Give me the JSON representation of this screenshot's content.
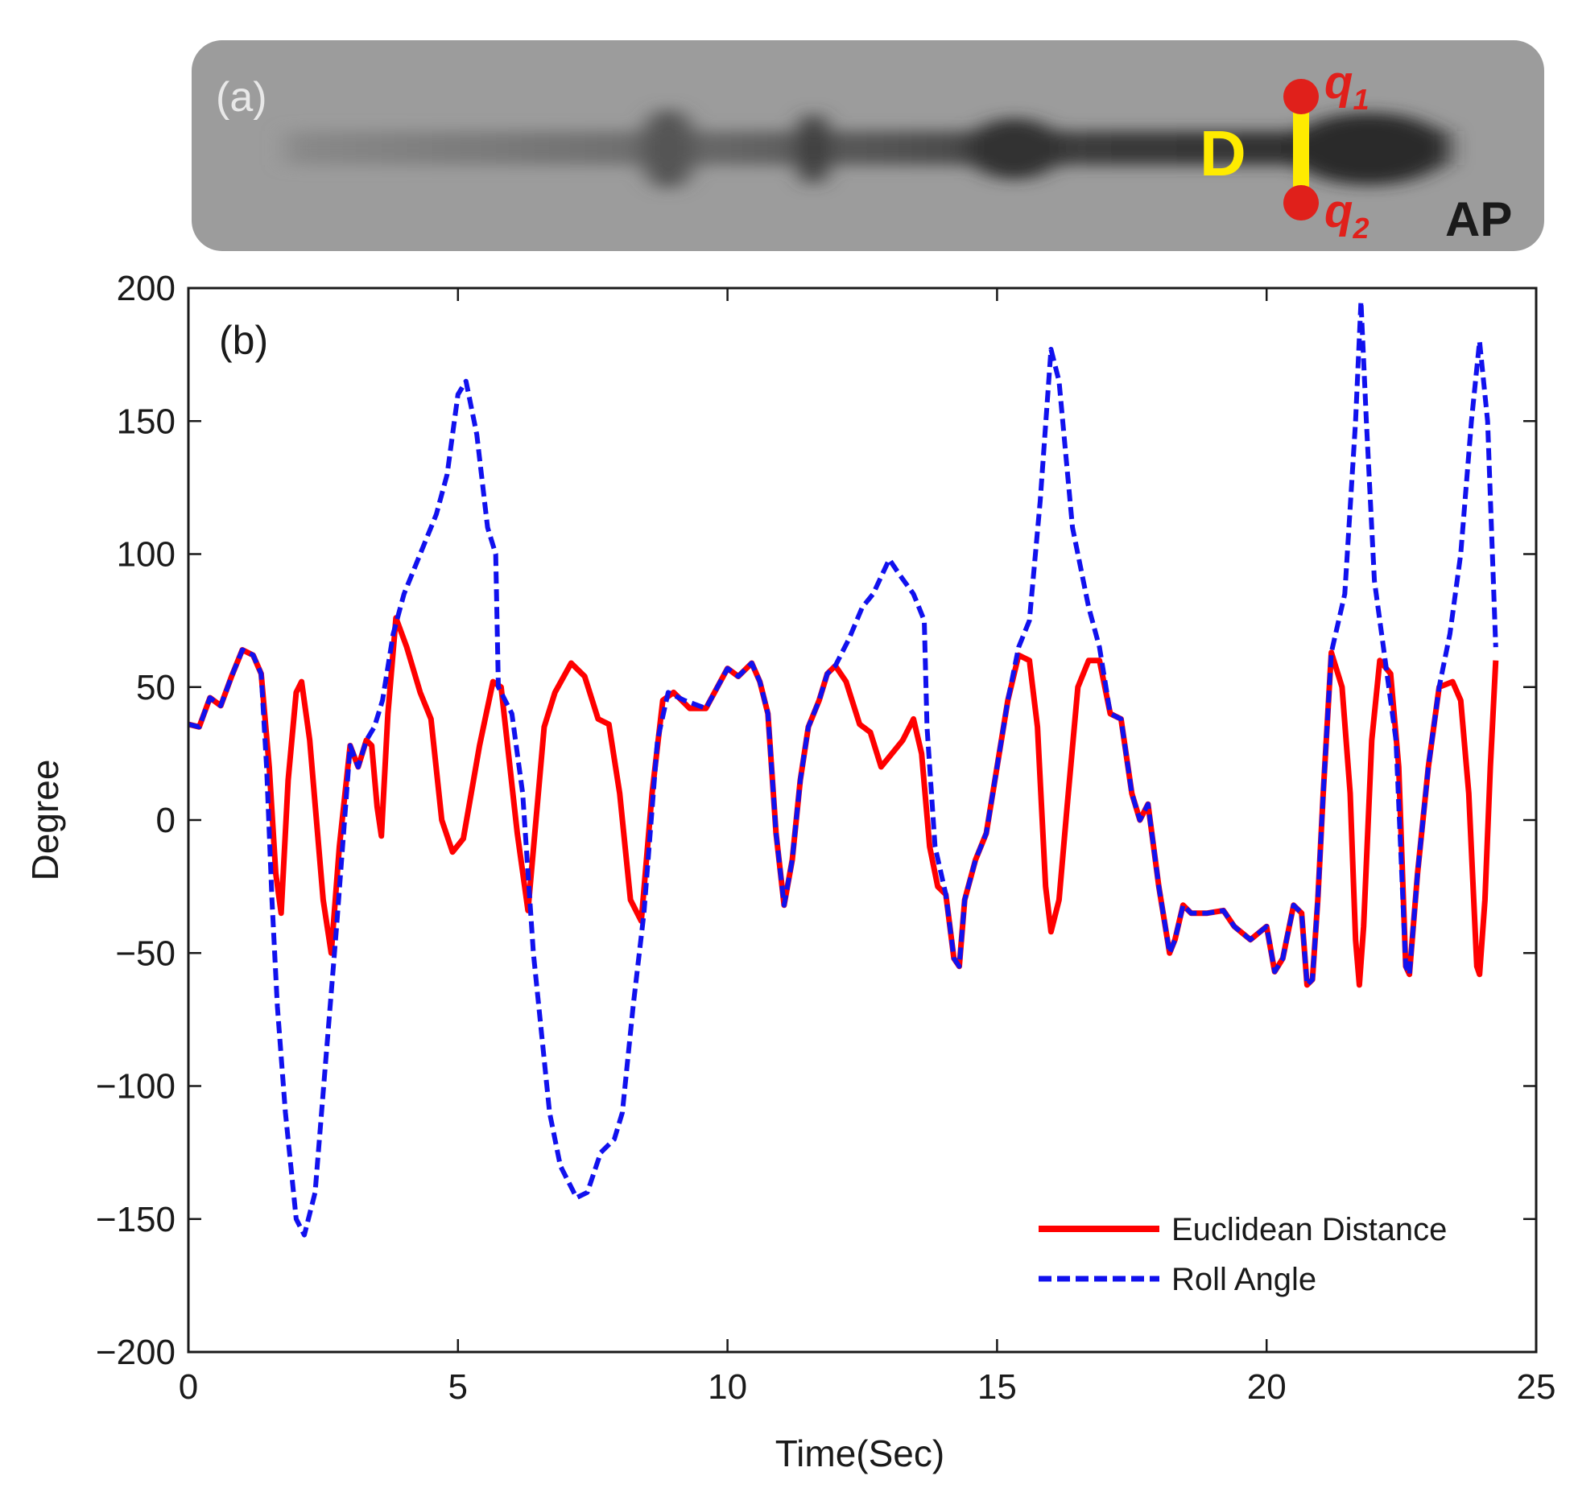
{
  "strip": {
    "panel_label": "(a)",
    "segment_label": "D",
    "point_top_label": "q",
    "point_top_sub": "1",
    "point_bottom_label": "q",
    "point_bottom_sub": "2",
    "view_label": "AP",
    "colors": {
      "background": "#9c9c9c",
      "segment": "#ffeb00",
      "points": "#e0201b",
      "view": "#1a1a1a"
    }
  },
  "chart_data": {
    "type": "line",
    "panel_label": "(b)",
    "title": "",
    "xlabel": "Time(Sec)",
    "ylabel": "Degree",
    "xlim": [
      0,
      25
    ],
    "ylim": [
      -200,
      200
    ],
    "xticks": [
      0,
      5,
      10,
      15,
      20,
      25
    ],
    "xtick_labels": [
      "0",
      "5",
      "10",
      "15",
      "20",
      "25"
    ],
    "yticks": [
      -200,
      -150,
      -100,
      -50,
      0,
      50,
      100,
      150,
      200
    ],
    "ytick_labels": [
      "−200",
      "−150",
      "−100",
      "−50",
      "0",
      "50",
      "100",
      "150",
      "200"
    ],
    "grid": false,
    "legend_position": "bottom-right",
    "series": [
      {
        "name": "Euclidean Distance",
        "color": "#ff0000",
        "style": "solid",
        "points": [
          [
            0,
            36
          ],
          [
            0.2,
            35
          ],
          [
            0.4,
            46
          ],
          [
            0.6,
            43
          ],
          [
            0.8,
            54
          ],
          [
            1.0,
            64
          ],
          [
            1.2,
            62
          ],
          [
            1.35,
            55
          ],
          [
            1.5,
            20
          ],
          [
            1.62,
            -20
          ],
          [
            1.72,
            -35
          ],
          [
            1.85,
            15
          ],
          [
            2.0,
            48
          ],
          [
            2.1,
            52
          ],
          [
            2.25,
            30
          ],
          [
            2.5,
            -30
          ],
          [
            2.65,
            -50
          ],
          [
            2.8,
            -10
          ],
          [
            3.0,
            28
          ],
          [
            3.15,
            20
          ],
          [
            3.3,
            30
          ],
          [
            3.4,
            28
          ],
          [
            3.5,
            5
          ],
          [
            3.58,
            -6
          ],
          [
            3.7,
            40
          ],
          [
            3.85,
            76
          ],
          [
            4.05,
            65
          ],
          [
            4.3,
            48
          ],
          [
            4.5,
            38
          ],
          [
            4.7,
            0
          ],
          [
            4.9,
            -12
          ],
          [
            5.1,
            -7
          ],
          [
            5.4,
            28
          ],
          [
            5.65,
            52
          ],
          [
            5.8,
            50
          ],
          [
            6.1,
            -5
          ],
          [
            6.3,
            -34
          ],
          [
            6.6,
            35
          ],
          [
            6.8,
            48
          ],
          [
            7.1,
            59
          ],
          [
            7.35,
            54
          ],
          [
            7.6,
            38
          ],
          [
            7.8,
            36
          ],
          [
            8.0,
            10
          ],
          [
            8.2,
            -30
          ],
          [
            8.4,
            -38
          ],
          [
            8.6,
            10
          ],
          [
            8.8,
            45
          ],
          [
            9.0,
            48
          ],
          [
            9.3,
            42
          ],
          [
            9.6,
            42
          ],
          [
            10.0,
            57
          ],
          [
            10.2,
            54
          ],
          [
            10.45,
            59
          ],
          [
            10.6,
            52
          ],
          [
            10.75,
            40
          ],
          [
            10.9,
            -5
          ],
          [
            11.05,
            -32
          ],
          [
            11.2,
            -15
          ],
          [
            11.35,
            15
          ],
          [
            11.5,
            35
          ],
          [
            11.7,
            45
          ],
          [
            11.85,
            55
          ],
          [
            12.0,
            58
          ],
          [
            12.2,
            52
          ],
          [
            12.45,
            36
          ],
          [
            12.65,
            33
          ],
          [
            12.85,
            20
          ],
          [
            13.05,
            25
          ],
          [
            13.25,
            30
          ],
          [
            13.45,
            38
          ],
          [
            13.6,
            25
          ],
          [
            13.75,
            -10
          ],
          [
            13.9,
            -25
          ],
          [
            14.05,
            -28
          ],
          [
            14.2,
            -52
          ],
          [
            14.3,
            -55
          ],
          [
            14.4,
            -30
          ],
          [
            14.6,
            -15
          ],
          [
            14.8,
            -5
          ],
          [
            15.0,
            20
          ],
          [
            15.2,
            45
          ],
          [
            15.4,
            62
          ],
          [
            15.6,
            60
          ],
          [
            15.75,
            35
          ],
          [
            15.9,
            -25
          ],
          [
            16.0,
            -42
          ],
          [
            16.15,
            -30
          ],
          [
            16.3,
            5
          ],
          [
            16.5,
            50
          ],
          [
            16.7,
            60
          ],
          [
            16.9,
            60
          ],
          [
            17.1,
            40
          ],
          [
            17.3,
            38
          ],
          [
            17.5,
            10
          ],
          [
            17.65,
            0
          ],
          [
            17.8,
            6
          ],
          [
            18.0,
            -25
          ],
          [
            18.2,
            -50
          ],
          [
            18.3,
            -45
          ],
          [
            18.45,
            -32
          ],
          [
            18.6,
            -35
          ],
          [
            18.9,
            -35
          ],
          [
            19.2,
            -34
          ],
          [
            19.4,
            -40
          ],
          [
            19.7,
            -45
          ],
          [
            20.0,
            -40
          ],
          [
            20.15,
            -57
          ],
          [
            20.3,
            -52
          ],
          [
            20.5,
            -32
          ],
          [
            20.65,
            -35
          ],
          [
            20.75,
            -62
          ],
          [
            20.85,
            -60
          ],
          [
            20.95,
            -30
          ],
          [
            21.05,
            10
          ],
          [
            21.2,
            63
          ],
          [
            21.4,
            50
          ],
          [
            21.55,
            10
          ],
          [
            21.65,
            -45
          ],
          [
            21.72,
            -62
          ],
          [
            21.8,
            -40
          ],
          [
            21.95,
            30
          ],
          [
            22.1,
            60
          ],
          [
            22.3,
            55
          ],
          [
            22.45,
            20
          ],
          [
            22.58,
            -55
          ],
          [
            22.65,
            -58
          ],
          [
            22.8,
            -20
          ],
          [
            23.0,
            20
          ],
          [
            23.2,
            50
          ],
          [
            23.45,
            52
          ],
          [
            23.6,
            45
          ],
          [
            23.75,
            10
          ],
          [
            23.9,
            -55
          ],
          [
            23.95,
            -58
          ],
          [
            24.05,
            -30
          ],
          [
            24.15,
            20
          ],
          [
            24.25,
            60
          ]
        ]
      },
      {
        "name": "Roll Angle",
        "color": "#1111ee",
        "style": "dashed",
        "points": [
          [
            0,
            36
          ],
          [
            0.2,
            35
          ],
          [
            0.4,
            46
          ],
          [
            0.6,
            43
          ],
          [
            0.8,
            54
          ],
          [
            1.0,
            64
          ],
          [
            1.2,
            62
          ],
          [
            1.35,
            55
          ],
          [
            1.45,
            20
          ],
          [
            1.55,
            -30
          ],
          [
            1.65,
            -70
          ],
          [
            1.8,
            -110
          ],
          [
            2.0,
            -150
          ],
          [
            2.15,
            -156
          ],
          [
            2.35,
            -140
          ],
          [
            2.55,
            -90
          ],
          [
            2.75,
            -40
          ],
          [
            3.0,
            28
          ],
          [
            3.15,
            20
          ],
          [
            3.3,
            30
          ],
          [
            3.45,
            35
          ],
          [
            3.6,
            45
          ],
          [
            3.8,
            70
          ],
          [
            4.0,
            85
          ],
          [
            4.3,
            100
          ],
          [
            4.6,
            115
          ],
          [
            4.8,
            130
          ],
          [
            5.0,
            160
          ],
          [
            5.15,
            165
          ],
          [
            5.35,
            145
          ],
          [
            5.55,
            110
          ],
          [
            5.7,
            100
          ],
          [
            5.75,
            50
          ],
          [
            6.0,
            40
          ],
          [
            6.2,
            10
          ],
          [
            6.4,
            -50
          ],
          [
            6.7,
            -110
          ],
          [
            6.9,
            -130
          ],
          [
            7.2,
            -142
          ],
          [
            7.4,
            -140
          ],
          [
            7.65,
            -125
          ],
          [
            7.9,
            -120
          ],
          [
            8.05,
            -110
          ],
          [
            8.25,
            -70
          ],
          [
            8.45,
            -35
          ],
          [
            8.7,
            30
          ],
          [
            8.9,
            48
          ],
          [
            9.2,
            45
          ],
          [
            9.6,
            42
          ],
          [
            10.0,
            57
          ],
          [
            10.2,
            54
          ],
          [
            10.45,
            59
          ],
          [
            10.6,
            52
          ],
          [
            10.75,
            40
          ],
          [
            10.9,
            -5
          ],
          [
            11.05,
            -32
          ],
          [
            11.2,
            -15
          ],
          [
            11.35,
            15
          ],
          [
            11.5,
            35
          ],
          [
            11.7,
            45
          ],
          [
            11.85,
            55
          ],
          [
            12.0,
            58
          ],
          [
            12.25,
            68
          ],
          [
            12.5,
            80
          ],
          [
            12.7,
            85
          ],
          [
            13.0,
            98
          ],
          [
            13.2,
            92
          ],
          [
            13.45,
            85
          ],
          [
            13.65,
            75
          ],
          [
            13.7,
            35
          ],
          [
            13.85,
            -10
          ],
          [
            14.05,
            -28
          ],
          [
            14.2,
            -52
          ],
          [
            14.3,
            -55
          ],
          [
            14.4,
            -30
          ],
          [
            14.6,
            -15
          ],
          [
            14.8,
            -5
          ],
          [
            15.0,
            20
          ],
          [
            15.2,
            45
          ],
          [
            15.4,
            65
          ],
          [
            15.6,
            75
          ],
          [
            15.8,
            120
          ],
          [
            16.0,
            177
          ],
          [
            16.15,
            165
          ],
          [
            16.4,
            110
          ],
          [
            16.7,
            80
          ],
          [
            16.9,
            65
          ],
          [
            17.1,
            40
          ],
          [
            17.3,
            38
          ],
          [
            17.5,
            10
          ],
          [
            17.65,
            0
          ],
          [
            17.8,
            6
          ],
          [
            18.0,
            -25
          ],
          [
            18.2,
            -50
          ],
          [
            18.3,
            -45
          ],
          [
            18.45,
            -32
          ],
          [
            18.6,
            -35
          ],
          [
            18.9,
            -35
          ],
          [
            19.2,
            -34
          ],
          [
            19.4,
            -40
          ],
          [
            19.7,
            -45
          ],
          [
            20.0,
            -40
          ],
          [
            20.15,
            -57
          ],
          [
            20.3,
            -52
          ],
          [
            20.5,
            -32
          ],
          [
            20.65,
            -35
          ],
          [
            20.75,
            -62
          ],
          [
            20.85,
            -60
          ],
          [
            20.95,
            -30
          ],
          [
            21.05,
            10
          ],
          [
            21.2,
            63
          ],
          [
            21.45,
            85
          ],
          [
            21.65,
            150
          ],
          [
            21.75,
            195
          ],
          [
            21.85,
            150
          ],
          [
            22.0,
            90
          ],
          [
            22.2,
            60
          ],
          [
            22.4,
            30
          ],
          [
            22.58,
            -55
          ],
          [
            22.65,
            -58
          ],
          [
            22.8,
            -20
          ],
          [
            23.0,
            20
          ],
          [
            23.2,
            50
          ],
          [
            23.4,
            70
          ],
          [
            23.6,
            100
          ],
          [
            23.8,
            150
          ],
          [
            23.95,
            180
          ],
          [
            24.1,
            150
          ],
          [
            24.25,
            65
          ]
        ]
      }
    ]
  }
}
